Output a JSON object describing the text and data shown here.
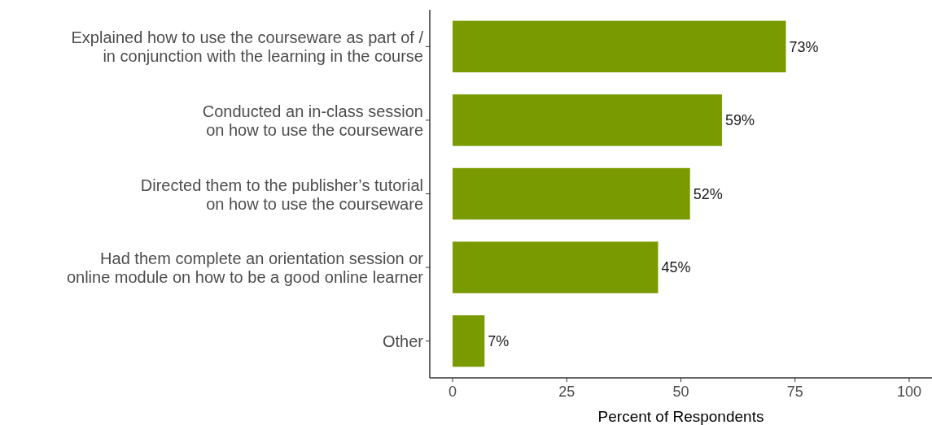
{
  "chart_data": {
    "type": "bar",
    "orientation": "horizontal",
    "categories": [
      "Explained how to use the courseware as part of /\nin conjunction with the learning in the course",
      "Conducted an in-class session\non how to use the courseware",
      "Directed them to the publisher’s tutorial\non how to use the courseware",
      "Had them complete an orientation session or\nonline module on how to be a good online learner",
      "Other"
    ],
    "values": [
      73,
      59,
      52,
      45,
      7
    ],
    "value_labels": [
      "73%",
      "59%",
      "52%",
      "45%",
      "7%"
    ],
    "color": "#7a9a01",
    "xlabel": "Percent of Respondents",
    "xlim": [
      -5,
      105
    ],
    "xticks": [
      0,
      25,
      50,
      75,
      100
    ],
    "grid": false
  }
}
